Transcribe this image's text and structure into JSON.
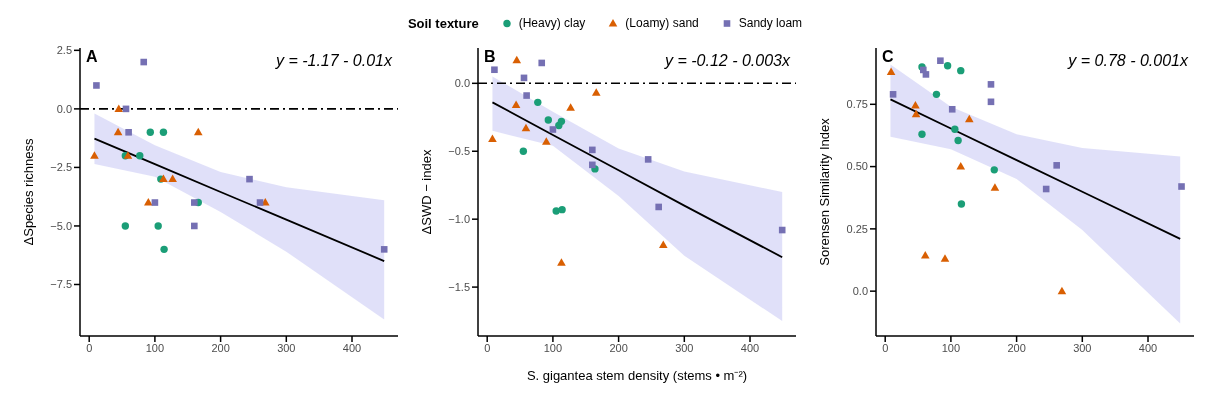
{
  "chart_data": [
    {
      "type": "scatter",
      "ylabel": "ΔSpecies richness",
      "legend": "top",
      "legend_title": "Soil texture",
      "annotations": [
        "A",
        "y = -1.17 - 0.01x"
      ],
      "xlim": [
        -14,
        470
      ],
      "xticks": [
        0,
        100,
        200,
        300,
        400
      ],
      "ylim": [
        -9.7,
        2.6
      ],
      "yticks": [
        {
          "value": 2.5,
          "label": "2.5"
        },
        {
          "value": 0,
          "label": "0.0"
        },
        {
          "value": -2.5,
          "label": "−2.5"
        },
        {
          "value": -5,
          "label": "−5.0"
        },
        {
          "value": -7.5,
          "label": "−7.5"
        }
      ],
      "ref_lines": [
        {
          "axis": "y",
          "value": 0,
          "color": "#000000",
          "line_style": "dashed"
        }
      ],
      "series": [
        {
          "type": "line",
          "color": "#000000",
          "x": [
            8,
            100,
            200,
            300,
            449
          ],
          "values": [
            -1.27,
            -2.36,
            -3.55,
            -4.73,
            -6.5
          ],
          "lower": [
            -2.35,
            -2.9,
            -4.4,
            -6.1,
            -9.0
          ],
          "upper": [
            -0.2,
            -1.55,
            -2.7,
            -3.35,
            -3.9
          ]
        },
        {
          "name": "(Heavy) clay",
          "color": "#1b9e77",
          "marker": "circle",
          "x": [
            93,
            113,
            55,
            77,
            109,
            55,
            105,
            114,
            166
          ],
          "values": [
            -1,
            -1,
            -2,
            -2,
            -3,
            -5,
            -5,
            -6,
            -4
          ]
        },
        {
          "name": "(Loamy) sand",
          "color": "#d95f02",
          "marker": "triangle",
          "x": [
            8,
            45,
            44,
            59,
            166,
            113,
            127,
            90,
            268
          ],
          "values": [
            -2,
            0,
            -1,
            -2,
            -1,
            -3,
            -3,
            -4,
            -4
          ]
        },
        {
          "name": "Sandy loam",
          "color": "#7570b3",
          "marker": "square",
          "x": [
            11,
            56,
            60,
            83,
            100,
            160,
            160,
            244,
            260,
            449
          ],
          "values": [
            1,
            0,
            -1,
            2,
            -4,
            -4,
            -5,
            -3,
            -4,
            -6
          ]
        }
      ]
    },
    {
      "type": "scatter",
      "ylabel": "ΔSWD − index",
      "xlabel": "S. gigantea stem density (stems • m⁻²)",
      "annotations": [
        "B",
        "y = -0.12 - 0.003x"
      ],
      "xlim": [
        -14,
        470
      ],
      "xticks": [
        0,
        100,
        200,
        300,
        400
      ],
      "ylim": [
        -1.86,
        0.26
      ],
      "yticks": [
        {
          "value": 0,
          "label": "0.0"
        },
        {
          "value": -0.5,
          "label": "−0.5"
        },
        {
          "value": -1,
          "label": "−1.0"
        },
        {
          "value": -1.5,
          "label": "−1.5"
        }
      ],
      "ref_lines": [
        {
          "axis": "y",
          "value": 0,
          "color": "#000000",
          "line_style": "dashed"
        }
      ],
      "series": [
        {
          "type": "line",
          "color": "#000000",
          "x": [
            8,
            100,
            200,
            300,
            449
          ],
          "values": [
            -0.14,
            -0.38,
            -0.64,
            -0.9,
            -1.28
          ],
          "lower": [
            -0.35,
            -0.46,
            -0.83,
            -1.27,
            -1.75
          ],
          "upper": [
            0.05,
            -0.21,
            -0.48,
            -0.65,
            -0.8
          ]
        },
        {
          "name": "(Heavy) clay",
          "color": "#1b9e77",
          "marker": "circle",
          "x": [
            77,
            93,
            109,
            113,
            55,
            105,
            114,
            164
          ],
          "values": [
            -0.14,
            -0.27,
            -0.31,
            -0.28,
            -0.5,
            -0.94,
            -0.93,
            -0.63
          ]
        },
        {
          "name": "(Loamy) sand",
          "color": "#d95f02",
          "marker": "triangle",
          "x": [
            8,
            45,
            44,
            59,
            90,
            127,
            166,
            113,
            268
          ],
          "values": [
            -0.41,
            0.17,
            -0.16,
            -0.33,
            -0.43,
            -0.18,
            -0.07,
            -1.32,
            -1.19
          ]
        },
        {
          "name": "Sandy loam",
          "color": "#7570b3",
          "marker": "square",
          "x": [
            11,
            56,
            60,
            83,
            100,
            160,
            160,
            245,
            261,
            449
          ],
          "values": [
            0.1,
            0.04,
            -0.09,
            0.15,
            -0.34,
            -0.49,
            -0.6,
            -0.56,
            -0.91,
            -1.08
          ]
        }
      ]
    },
    {
      "type": "scatter",
      "ylabel": "Sorensen Similarity Index",
      "annotations": [
        "C",
        "y = 0.78 - 0.001x"
      ],
      "xlim": [
        -14,
        470
      ],
      "xticks": [
        0,
        100,
        200,
        300,
        400
      ],
      "ylim": [
        -0.18,
        0.976
      ],
      "yticks": [
        {
          "value": 0,
          "label": "0.0"
        },
        {
          "value": 0.25,
          "label": "0.25"
        },
        {
          "value": 0.5,
          "label": "0.50"
        },
        {
          "value": 0.75,
          "label": "0.75"
        }
      ],
      "series": [
        {
          "type": "line",
          "color": "#000000",
          "x": [
            8,
            100,
            200,
            300,
            449
          ],
          "values": [
            0.77,
            0.653,
            0.526,
            0.399,
            0.21
          ],
          "lower": [
            0.62,
            0.57,
            0.45,
            0.245,
            -0.13
          ],
          "upper": [
            0.91,
            0.74,
            0.63,
            0.575,
            0.54
          ]
        },
        {
          "name": "(Heavy) clay",
          "color": "#1b9e77",
          "marker": "circle",
          "x": [
            56,
            78,
            95,
            115,
            56,
            106,
            111,
            116,
            166
          ],
          "values": [
            0.9,
            0.79,
            0.905,
            0.885,
            0.63,
            0.65,
            0.605,
            0.35,
            0.487
          ]
        },
        {
          "name": "(Loamy) sand",
          "color": "#d95f02",
          "marker": "triangle",
          "x": [
            9,
            46,
            47,
            61,
            91,
            115,
            128,
            167,
            269
          ],
          "values": [
            0.88,
            0.745,
            0.71,
            0.143,
            0.13,
            0.5,
            0.69,
            0.415,
            0
          ]
        },
        {
          "name": "Sandy loam",
          "color": "#7570b3",
          "marker": "square",
          "x": [
            12,
            58,
            62,
            84,
            102,
            161,
            161,
            245,
            261,
            451
          ],
          "values": [
            0.79,
            0.888,
            0.87,
            0.925,
            0.73,
            0.83,
            0.76,
            0.41,
            0.505,
            0.42
          ]
        }
      ]
    }
  ]
}
